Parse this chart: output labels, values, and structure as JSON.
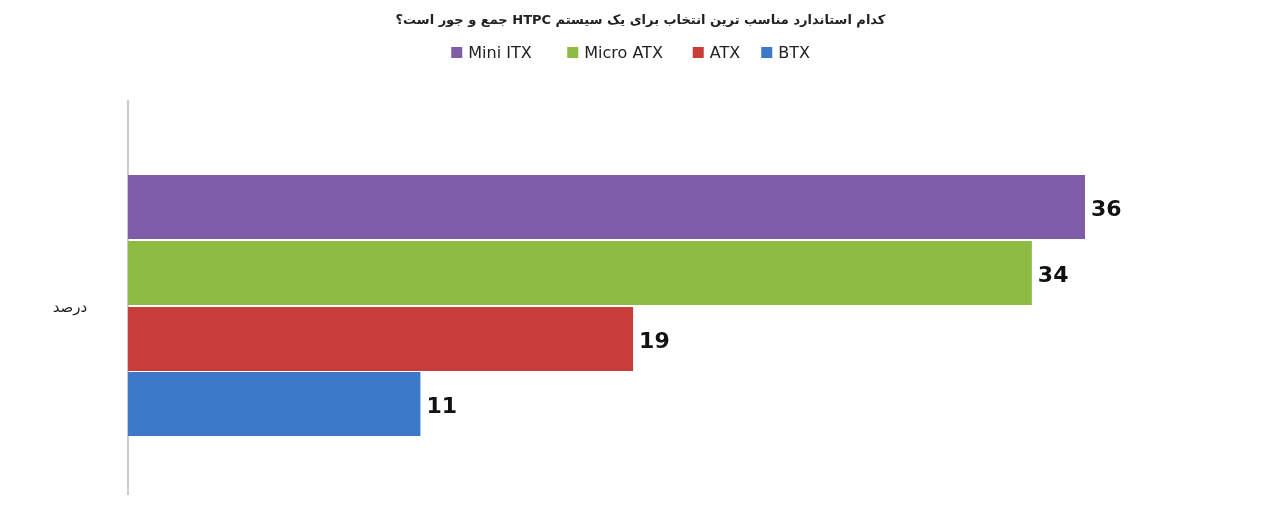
{
  "chart_data": {
    "type": "bar",
    "orientation": "horizontal",
    "title": "کدام استاندارد مناسب ترین انتخاب برای یک سیستم HTPC جمع و جور است؟",
    "ylabel": "درصد",
    "categories": [
      null
    ],
    "series": [
      {
        "name": "Mini ITX",
        "color": "#7f5ca8",
        "values": [
          36
        ]
      },
      {
        "name": "Micro ATX",
        "color": "#8cba43",
        "values": [
          34
        ]
      },
      {
        "name": "ATX",
        "color": "#c83c3a",
        "values": [
          19
        ]
      },
      {
        "name": "BTX",
        "color": "#3c78c8",
        "values": [
          11
        ]
      }
    ],
    "data_labels": true,
    "legend": "top"
  }
}
